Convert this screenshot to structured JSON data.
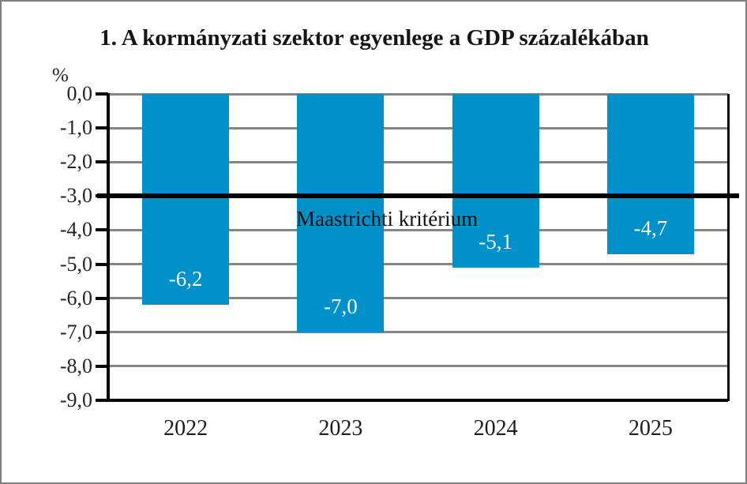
{
  "chart": {
    "title": "1. A kormányzati szektor egyenlege a GDP százalékában",
    "percent_label": "%"
  },
  "chart_data": {
    "type": "bar",
    "title": "1. A kormányzati szektor egyenlege a GDP százalékában",
    "xlabel": "",
    "ylabel": "%",
    "categories": [
      "2022",
      "2023",
      "2024",
      "2025"
    ],
    "values": [
      -6.2,
      -7.0,
      -5.1,
      -4.7
    ],
    "value_labels": [
      "-6,2",
      "-7,0",
      "-5,1",
      "-4,7"
    ],
    "ylim": [
      -9,
      0
    ],
    "y_tick_labels": [
      "0,0",
      "-1,0",
      "-2,0",
      "-3,0",
      "-4,0",
      "-5,0",
      "-6,0",
      "-7,0",
      "-8,0",
      "-9,0"
    ],
    "y_tick_values": [
      0,
      -1,
      -2,
      -3,
      -4,
      -5,
      -6,
      -7,
      -8,
      -9
    ],
    "grid": true,
    "legend": "none",
    "reference_line": {
      "value": -3.0,
      "label": "Maastrichti kritérium",
      "color": "#000000"
    },
    "colors": {
      "bar": "#0090ca",
      "gridline": "#858585",
      "axis": "#000000",
      "bar_label_text": "#f4f8fb",
      "text": "#23232b",
      "frame_border": "#7f7f7f"
    }
  }
}
